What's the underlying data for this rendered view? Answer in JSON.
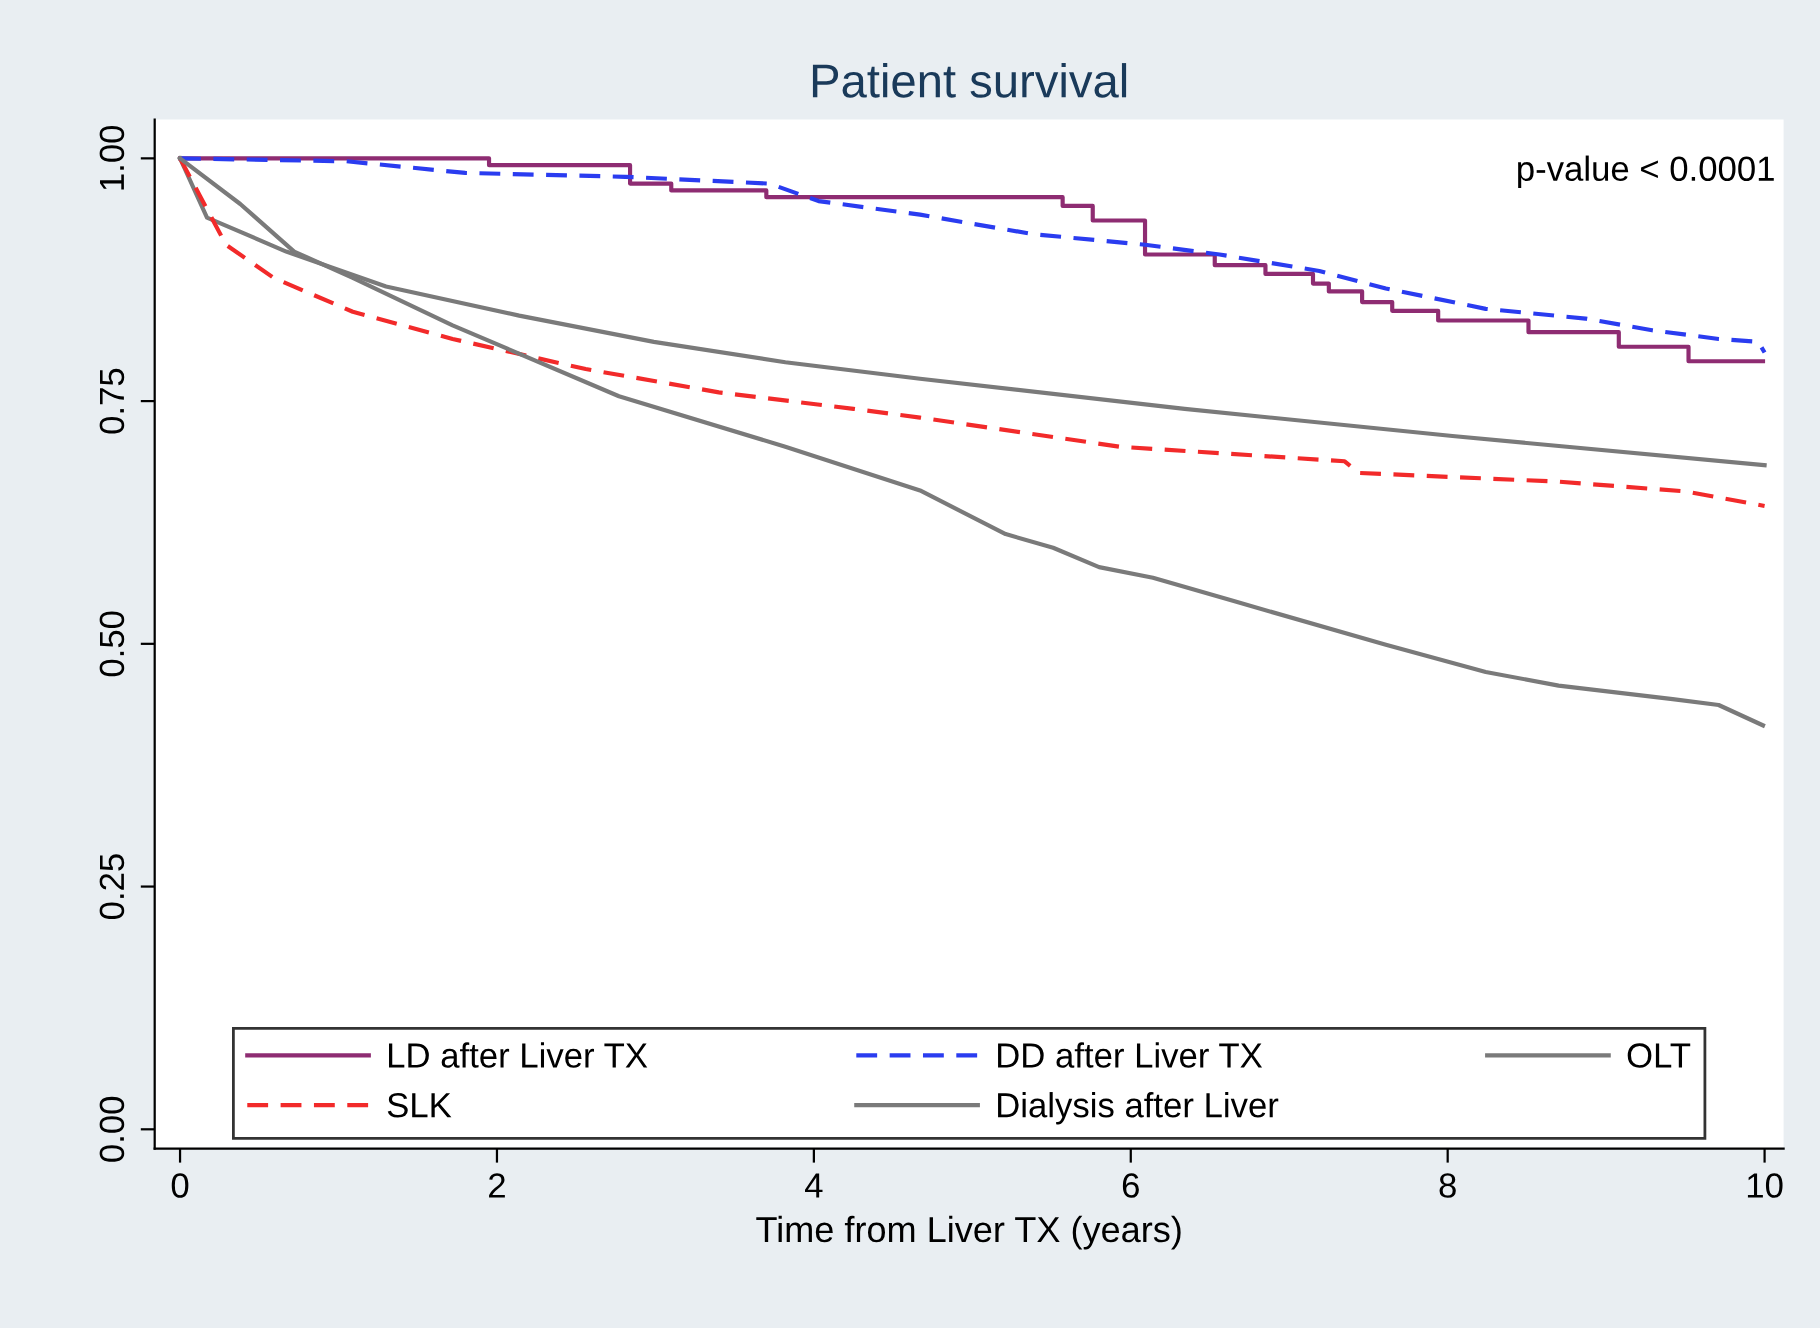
{
  "chart_data": {
    "type": "line",
    "title": "Patient survival",
    "xlabel": "Time from Liver TX (years)",
    "annotations": [
      "p-value < 0.0001"
    ],
    "xlim": [
      -0.16,
      10.12
    ],
    "ylim": [
      -0.02,
      1.04
    ],
    "xticks": [
      0,
      2,
      4,
      6,
      8,
      10
    ],
    "yticks": [
      {
        "value": 0,
        "label": "0.00"
      },
      {
        "value": 0.25,
        "label": "0.25"
      },
      {
        "value": 0.5,
        "label": "0.50"
      },
      {
        "value": 0.75,
        "label": "0.75"
      },
      {
        "value": 1,
        "label": "1.00"
      }
    ],
    "grid": false,
    "legend": "bottom",
    "marker": "none",
    "series": [
      {
        "name": "LD after Liver TX",
        "type": "step",
        "color": "#8e2c72",
        "line_style": "solid",
        "x": [
          0,
          1.95,
          2.84,
          3.1,
          3.7,
          5.57,
          5.76,
          6.09,
          6.53,
          6.85,
          7.15,
          7.25,
          7.46,
          7.65,
          7.94,
          8.51,
          9.08,
          9.52,
          9.99
        ],
        "values": [
          1.0,
          0.993,
          0.974,
          0.967,
          0.96,
          0.951,
          0.936,
          0.901,
          0.89,
          0.881,
          0.871,
          0.863,
          0.852,
          0.843,
          0.833,
          0.821,
          0.806,
          0.791,
          0.791
        ]
      },
      {
        "name": "DD after Liver TX",
        "color": "#2a3cf0",
        "line_style": "dashed",
        "x": [
          0,
          1.05,
          1.8,
          2.81,
          3.72,
          4.03,
          4.67,
          5.38,
          6.09,
          6.56,
          7.19,
          7.61,
          8.24,
          8.87,
          9.29,
          9.71,
          9.96,
          10.0
        ],
        "values": [
          1.0,
          0.997,
          0.985,
          0.981,
          0.974,
          0.956,
          0.942,
          0.922,
          0.911,
          0.901,
          0.884,
          0.866,
          0.845,
          0.835,
          0.823,
          0.814,
          0.811,
          0.8
        ]
      },
      {
        "name": "OLT",
        "color": "#7a7a7a",
        "line_style": "solid",
        "x": [
          0,
          0.17,
          0.67,
          1.3,
          2.14,
          2.99,
          3.82,
          4.67,
          6.34,
          8.03,
          10.0
        ],
        "values": [
          1.0,
          0.939,
          0.904,
          0.868,
          0.838,
          0.811,
          0.79,
          0.773,
          0.742,
          0.714,
          0.684
        ]
      },
      {
        "name": "SLK",
        "color": "#f22a2a",
        "line_style": "dashed",
        "x": [
          0,
          0.13,
          0.29,
          0.59,
          1.09,
          1.72,
          2.56,
          3.4,
          4.25,
          4.67,
          5.93,
          7.35,
          7.44,
          8.7,
          9.5,
          10.0
        ],
        "values": [
          1.0,
          0.96,
          0.911,
          0.877,
          0.842,
          0.814,
          0.783,
          0.759,
          0.742,
          0.733,
          0.703,
          0.688,
          0.676,
          0.667,
          0.657,
          0.642
        ]
      },
      {
        "name": "Dialysis after Liver",
        "color": "#7a7a7a",
        "line_style": "solid",
        "x": [
          0,
          0.38,
          0.72,
          1.09,
          1.72,
          2.77,
          3.82,
          4.67,
          5.21,
          5.51,
          5.8,
          6.14,
          6.65,
          7.61,
          8.24,
          8.7,
          9.42,
          9.71,
          9.99
        ],
        "values": [
          1.0,
          0.953,
          0.904,
          0.877,
          0.828,
          0.755,
          0.703,
          0.658,
          0.613,
          0.599,
          0.579,
          0.568,
          0.544,
          0.499,
          0.471,
          0.457,
          0.443,
          0.437,
          0.416
        ]
      }
    ]
  }
}
